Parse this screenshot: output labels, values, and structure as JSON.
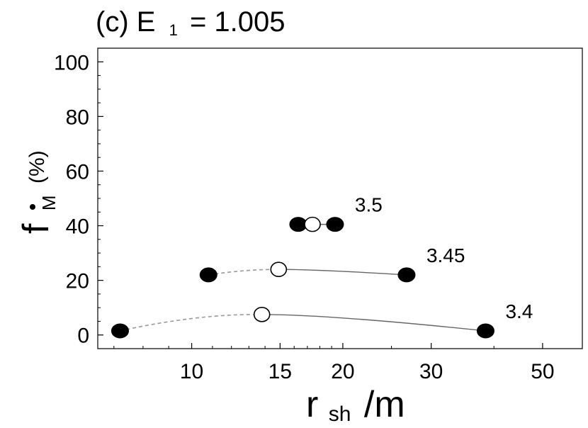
{
  "chart_data": {
    "type": "scatter",
    "title": "(c) E",
    "title_subscript": "1",
    "title_value": "= 1.005",
    "xlabel": "r",
    "xlabel_subscript": "sh",
    "xlabel_suffix": "/m",
    "ylabel": "f",
    "ylabel_subscript": "M",
    "ylabel_suffix": "(%)",
    "x_scale": "log",
    "xlim": [
      6.5,
      60
    ],
    "ylim": [
      -5,
      105
    ],
    "x_ticks": [
      10,
      15,
      20,
      30,
      50
    ],
    "y_ticks": [
      0,
      20,
      40,
      60,
      80,
      100
    ],
    "grid": false,
    "series": [
      {
        "label": "3.4",
        "filled": [
          [
            7.2,
            1.5
          ],
          [
            38.5,
            1.5
          ]
        ],
        "open": [
          [
            13.8,
            7.5
          ]
        ],
        "dashed_from_x": 7.2,
        "solid_to_x": 38.5
      },
      {
        "label": "3.45",
        "filled": [
          [
            10.8,
            22
          ],
          [
            26.8,
            22
          ]
        ],
        "open": [
          [
            14.9,
            24
          ]
        ],
        "dashed_from_x": 10.8,
        "solid_to_x": 26.8
      },
      {
        "label": "3.5",
        "filled": [
          [
            16.3,
            40.5
          ],
          [
            19.3,
            40.5
          ]
        ],
        "open": [
          [
            17.4,
            40.5
          ]
        ],
        "dashed_from_x": 16.3,
        "solid_to_x": 19.3
      }
    ],
    "colors": {
      "filled": "#000000",
      "open_fill": "#ffffff",
      "line": "#666666",
      "dashed": "#999999"
    }
  }
}
